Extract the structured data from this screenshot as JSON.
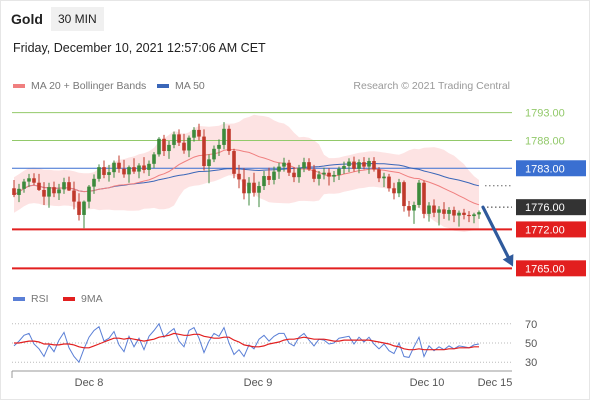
{
  "header": {
    "symbol": "Gold",
    "timeframe": "30 MIN"
  },
  "datetime": "Friday, December 10, 2021 12:57:06 AM CET",
  "legend": {
    "ma20_label": "MA 20 + Bollinger Bands",
    "ma50_label": "MA 50",
    "copyright": "Research © 2021 Trading Central"
  },
  "colors": {
    "ma20": "#f07f7f",
    "ma50": "#3a66b8",
    "bb": "#fde0e0",
    "up": "#3c8a3c",
    "down": "#c0392b",
    "resistance": "#92c96a",
    "pivot": "#3a6fd1",
    "support": "#e21f1f",
    "current": "#333333",
    "rsi": "#5a7fd6",
    "rsi_ma": "#e21f1f",
    "arrow": "#2f5a9c"
  },
  "chart_data": [
    {
      "type": "candlestick",
      "ylim": [
        1762,
        1796
      ],
      "x_tick_labels": [
        "Dec 8",
        "Dec 9",
        "Dec 10",
        "Dec 15"
      ],
      "price_levels": [
        {
          "name": "resistance-2",
          "value": 1793.0,
          "label": "1793.00",
          "kind": "resistance"
        },
        {
          "name": "resistance-1",
          "value": 1788.0,
          "label": "1788.00",
          "kind": "resistance"
        },
        {
          "name": "pivot",
          "value": 1783.0,
          "label": "1783.00",
          "kind": "pivot"
        },
        {
          "name": "current-price",
          "value": 1776.0,
          "label": "1776.00",
          "kind": "current"
        },
        {
          "name": "support-1",
          "value": 1772.0,
          "label": "1772.00",
          "kind": "support"
        },
        {
          "name": "support-2",
          "value": 1765.0,
          "label": "1765.00",
          "kind": "support"
        }
      ],
      "forecast_arrow": {
        "from": 1776.0,
        "to": 1765.3
      },
      "candles": [
        [
          1779.4,
          1780.9,
          1777.8,
          1778.2
        ],
        [
          1778.2,
          1780.2,
          1776.9,
          1779.3
        ],
        [
          1779.3,
          1781.1,
          1778.6,
          1780.6
        ],
        [
          1780.6,
          1782.0,
          1779.6,
          1781.2
        ],
        [
          1781.2,
          1782.1,
          1780.0,
          1780.4
        ],
        [
          1780.4,
          1782.0,
          1778.9,
          1779.1
        ],
        [
          1779.1,
          1780.5,
          1776.4,
          1777.9
        ],
        [
          1777.9,
          1780.4,
          1775.9,
          1779.6
        ],
        [
          1779.6,
          1780.6,
          1777.8,
          1778.5
        ],
        [
          1778.5,
          1780.2,
          1777.3,
          1779.2
        ],
        [
          1779.2,
          1781.3,
          1778.4,
          1780.5
        ],
        [
          1780.5,
          1781.5,
          1778.9,
          1779.0
        ],
        [
          1779.0,
          1780.6,
          1775.6,
          1777.0
        ],
        [
          1777.0,
          1778.5,
          1773.6,
          1774.6
        ],
        [
          1774.6,
          1777.2,
          1772.2,
          1777.0
        ],
        [
          1777.0,
          1780.0,
          1775.8,
          1779.7
        ],
        [
          1779.7,
          1781.9,
          1778.4,
          1781.1
        ],
        [
          1781.1,
          1783.7,
          1780.6,
          1783.2
        ],
        [
          1783.2,
          1784.4,
          1781.2,
          1781.8
        ],
        [
          1781.8,
          1783.6,
          1780.6,
          1782.3
        ],
        [
          1782.3,
          1784.4,
          1781.3,
          1784.0
        ],
        [
          1784.0,
          1785.3,
          1782.2,
          1782.9
        ],
        [
          1782.9,
          1784.5,
          1781.3,
          1781.9
        ],
        [
          1781.9,
          1783.5,
          1780.4,
          1783.2
        ],
        [
          1783.2,
          1784.8,
          1782.0,
          1782.4
        ],
        [
          1782.4,
          1783.9,
          1781.2,
          1783.5
        ],
        [
          1783.5,
          1785.0,
          1782.1,
          1782.7
        ],
        [
          1782.7,
          1784.4,
          1781.6,
          1783.8
        ],
        [
          1783.8,
          1785.9,
          1783.0,
          1785.5
        ],
        [
          1785.5,
          1788.6,
          1785.1,
          1788.3
        ],
        [
          1788.3,
          1789.0,
          1785.2,
          1786.1
        ],
        [
          1786.1,
          1787.9,
          1784.7,
          1787.2
        ],
        [
          1787.2,
          1789.6,
          1786.6,
          1789.1
        ],
        [
          1789.1,
          1790.0,
          1787.0,
          1787.6
        ],
        [
          1787.6,
          1789.2,
          1785.6,
          1786.2
        ],
        [
          1786.2,
          1788.9,
          1785.0,
          1788.5
        ],
        [
          1788.5,
          1790.4,
          1787.8,
          1789.9
        ],
        [
          1789.9,
          1791.0,
          1788.0,
          1788.7
        ],
        [
          1788.7,
          1790.0,
          1782.6,
          1783.4
        ],
        [
          1783.4,
          1785.5,
          1780.3,
          1784.6
        ],
        [
          1784.6,
          1787.1,
          1784.1,
          1786.5
        ],
        [
          1786.5,
          1788.2,
          1785.2,
          1787.2
        ],
        [
          1787.2,
          1791.3,
          1786.4,
          1790.1
        ],
        [
          1790.1,
          1790.7,
          1785.4,
          1786.1
        ],
        [
          1786.1,
          1786.5,
          1781.2,
          1782.0
        ],
        [
          1782.0,
          1783.6,
          1779.4,
          1781.0
        ],
        [
          1781.0,
          1783.0,
          1777.4,
          1778.5
        ],
        [
          1778.5,
          1781.4,
          1776.3,
          1780.4
        ],
        [
          1780.4,
          1782.2,
          1777.9,
          1778.6
        ],
        [
          1778.6,
          1780.6,
          1776.0,
          1779.8
        ],
        [
          1779.8,
          1782.5,
          1779.1,
          1781.6
        ],
        [
          1781.6,
          1783.1,
          1780.0,
          1780.9
        ],
        [
          1780.9,
          1783.3,
          1780.1,
          1782.4
        ],
        [
          1782.4,
          1784.0,
          1781.1,
          1783.3
        ],
        [
          1783.3,
          1784.9,
          1782.4,
          1784.0
        ],
        [
          1784.0,
          1784.5,
          1781.6,
          1782.2
        ],
        [
          1782.2,
          1783.2,
          1780.5,
          1781.4
        ],
        [
          1781.4,
          1783.6,
          1780.4,
          1783.0
        ],
        [
          1783.0,
          1784.9,
          1782.3,
          1784.1
        ],
        [
          1784.1,
          1784.8,
          1782.5,
          1782.8
        ],
        [
          1782.8,
          1783.6,
          1780.5,
          1781.1
        ],
        [
          1781.1,
          1782.5,
          1779.9,
          1781.9
        ],
        [
          1781.9,
          1783.1,
          1781.0,
          1782.2
        ],
        [
          1782.2,
          1783.0,
          1779.9,
          1781.5
        ],
        [
          1781.5,
          1782.5,
          1780.5,
          1781.8
        ],
        [
          1781.8,
          1783.3,
          1780.9,
          1782.9
        ],
        [
          1782.9,
          1784.2,
          1782.0,
          1783.4
        ],
        [
          1783.4,
          1784.8,
          1782.3,
          1784.2
        ],
        [
          1784.2,
          1785.1,
          1782.4,
          1782.9
        ],
        [
          1782.9,
          1784.6,
          1782.1,
          1784.1
        ],
        [
          1784.1,
          1785.0,
          1782.8,
          1783.3
        ],
        [
          1783.3,
          1784.9,
          1782.0,
          1784.3
        ],
        [
          1784.3,
          1785.0,
          1782.4,
          1782.8
        ],
        [
          1782.8,
          1783.2,
          1780.5,
          1781.2
        ],
        [
          1781.2,
          1782.2,
          1779.6,
          1781.5
        ],
        [
          1781.5,
          1782.0,
          1778.8,
          1779.4
        ],
        [
          1779.4,
          1780.4,
          1777.4,
          1778.5
        ],
        [
          1778.5,
          1781.1,
          1777.8,
          1780.5
        ],
        [
          1780.5,
          1780.8,
          1775.2,
          1776.2
        ],
        [
          1776.2,
          1777.1,
          1774.3,
          1775.4
        ],
        [
          1775.4,
          1777.0,
          1773.0,
          1776.4
        ],
        [
          1776.4,
          1780.9,
          1775.9,
          1780.4
        ],
        [
          1780.4,
          1780.8,
          1774.0,
          1774.8
        ],
        [
          1774.8,
          1776.9,
          1773.4,
          1776.3
        ],
        [
          1776.3,
          1777.4,
          1774.2,
          1775.0
        ],
        [
          1775.0,
          1776.2,
          1772.7,
          1775.6
        ],
        [
          1775.6,
          1776.9,
          1773.9,
          1774.8
        ],
        [
          1774.8,
          1776.0,
          1773.6,
          1775.5
        ],
        [
          1775.5,
          1776.1,
          1773.3,
          1774.5
        ],
        [
          1774.5,
          1775.4,
          1772.5,
          1775.0
        ],
        [
          1775.0,
          1775.7,
          1773.8,
          1774.6
        ],
        [
          1774.6,
          1775.3,
          1773.3,
          1774.4
        ],
        [
          1774.4,
          1775.0,
          1773.1,
          1774.7
        ],
        [
          1774.7,
          1775.4,
          1773.9,
          1775.1
        ]
      ]
    },
    {
      "type": "line",
      "ylim": [
        24,
        76
      ],
      "y_tick_labels": [
        "70",
        "50",
        "30"
      ],
      "series": [
        {
          "name": "RSI",
          "values": [
            47,
            52,
            58,
            60,
            49,
            44,
            36,
            48,
            41,
            53,
            61,
            45,
            36,
            30,
            44,
            56,
            63,
            67,
            52,
            55,
            62,
            48,
            41,
            57,
            46,
            55,
            43,
            57,
            63,
            70,
            56,
            61,
            65,
            52,
            46,
            63,
            66,
            55,
            40,
            52,
            60,
            57,
            66,
            50,
            38,
            43,
            36,
            48,
            44,
            54,
            58,
            52,
            57,
            60,
            60,
            50,
            47,
            56,
            60,
            53,
            47,
            54,
            53,
            49,
            50,
            55,
            56,
            57,
            49,
            56,
            51,
            56,
            49,
            44,
            49,
            42,
            39,
            50,
            36,
            35,
            46,
            56,
            36,
            47,
            42,
            46,
            43,
            47,
            44,
            47,
            46,
            45,
            48,
            49
          ]
        },
        {
          "name": "9MA",
          "values": [
            50,
            50,
            51,
            52,
            52,
            51,
            49,
            49,
            48,
            48,
            49,
            49,
            48,
            46,
            45,
            45,
            47,
            49,
            51,
            53,
            55,
            55,
            54,
            55,
            54,
            53,
            52,
            53,
            54,
            56,
            57,
            58,
            60,
            59,
            58,
            58,
            59,
            59,
            57,
            56,
            55,
            55,
            56,
            56,
            53,
            51,
            48,
            47,
            46,
            46,
            47,
            49,
            50,
            51,
            53,
            54,
            54,
            55,
            56,
            55,
            54,
            54,
            54,
            53,
            52,
            52,
            53,
            53,
            53,
            53,
            53,
            53,
            52,
            51,
            50,
            49,
            47,
            46,
            44,
            43,
            43,
            44,
            43,
            43,
            43,
            43,
            43,
            44,
            44,
            45,
            45,
            45,
            46,
            46
          ]
        }
      ]
    }
  ]
}
